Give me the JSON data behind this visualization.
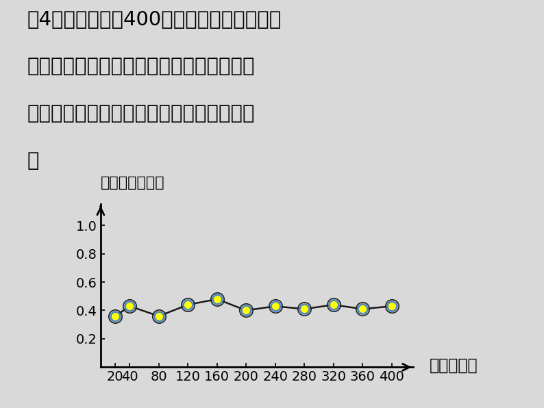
{
  "x_values": [
    20,
    40,
    80,
    120,
    160,
    200,
    240,
    280,
    320,
    360,
    400
  ],
  "y_values": [
    0.36,
    0.43,
    0.36,
    0.44,
    0.48,
    0.4,
    0.43,
    0.41,
    0.44,
    0.41,
    0.43
  ],
  "x_ticks": [
    20,
    40,
    80,
    120,
    160,
    200,
    240,
    280,
    320,
    360,
    400
  ],
  "y_ticks": [
    0.2,
    0.4,
    0.6,
    0.8,
    1.0
  ],
  "ylim": [
    0,
    1.15
  ],
  "xlim": [
    0,
    430
  ],
  "line_color": "#1a1a1a",
  "marker_face_color": "#ffff00",
  "marker_edge_color": "#5588bb",
  "marker_size": 10,
  "marker_edge_width": 2.0,
  "background_color": "#d9d9d9",
  "title_line1": "（4）小明共做了400次掷图钉游戏，并记录",
  "title_line2": "了游戏的结果绘制了下面的折线统计图，观",
  "title_line3": "察图像，钉尖朝上的频率的变化有什么规律",
  "title_line4": "？",
  "ylabel_text": "钉尖朝上的频率",
  "xlabel_text": "试验总次数",
  "title_fontsize": 21,
  "axis_label_fontsize": 17,
  "tick_fontsize": 14
}
